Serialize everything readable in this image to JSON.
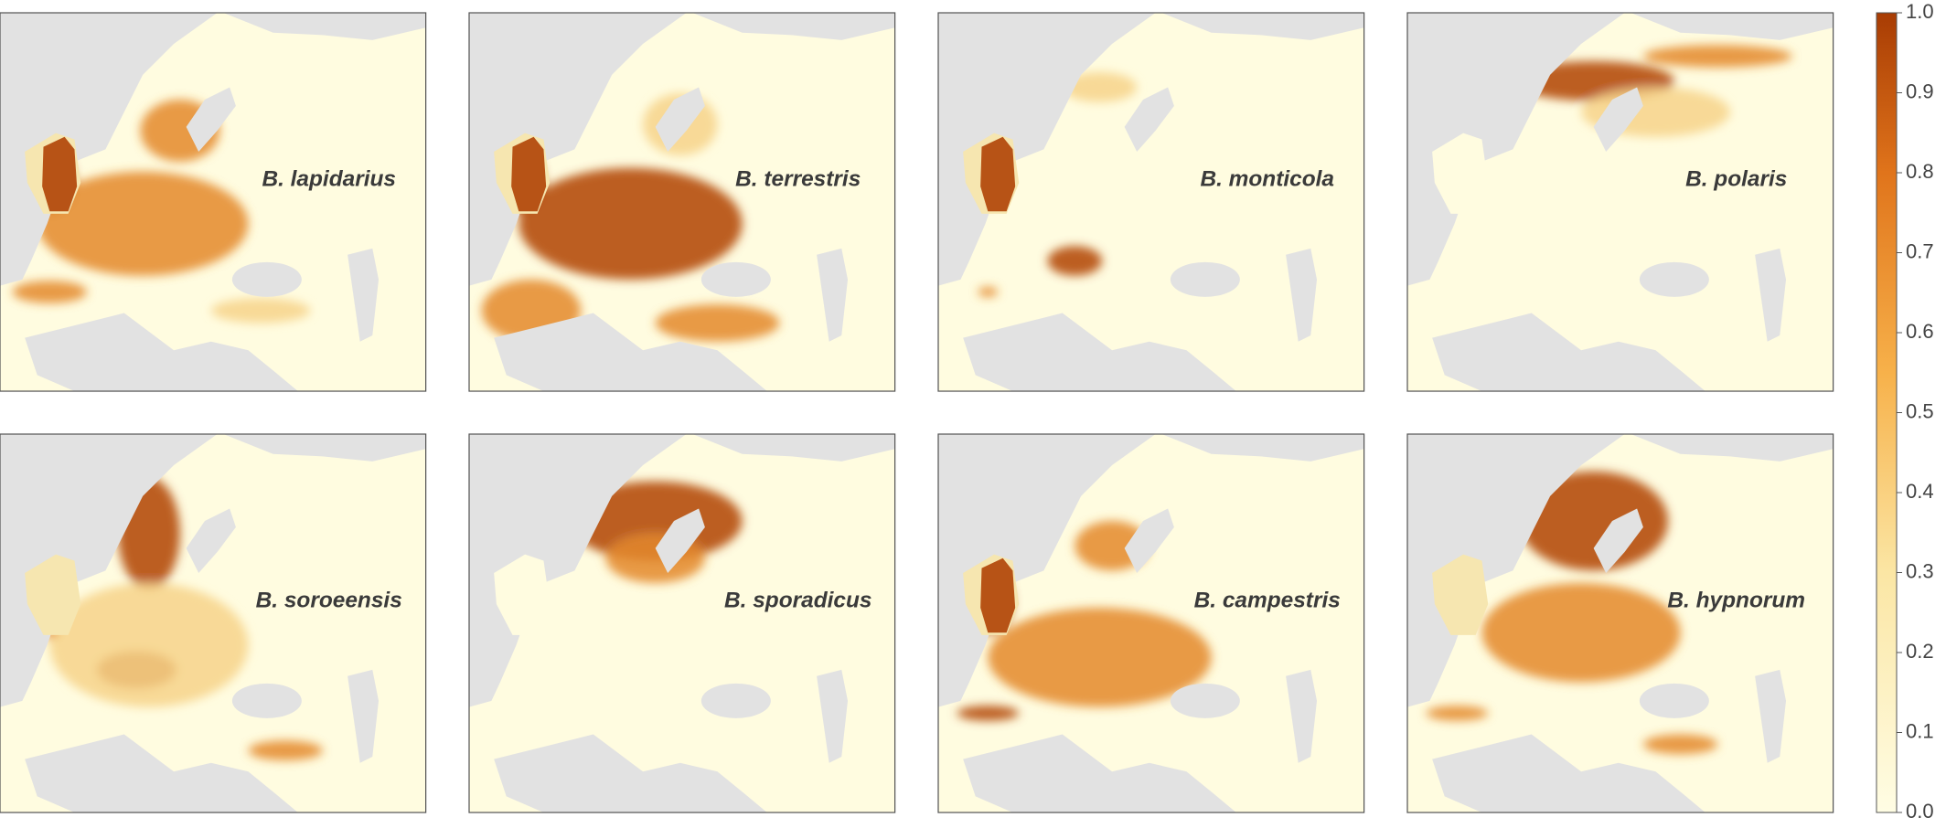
{
  "panels": [
    {
      "label": "B. lapidarius"
    },
    {
      "label": "B. terrestris"
    },
    {
      "label": "B. monticola"
    },
    {
      "label": "B. polaris"
    },
    {
      "label": "B. soroeensis"
    },
    {
      "label": "B. sporadicus"
    },
    {
      "label": "B. campestris"
    },
    {
      "label": "B. hypnorum"
    }
  ],
  "colorbar": {
    "range": [
      0,
      1
    ],
    "ticks": [
      {
        "value": 0,
        "label": "0.0"
      },
      0.1,
      0.2,
      0.3,
      0.4,
      0.5,
      0.6,
      0.7,
      0.8,
      0.9,
      {
        "value": 1,
        "label": "1.0"
      }
    ]
  }
}
